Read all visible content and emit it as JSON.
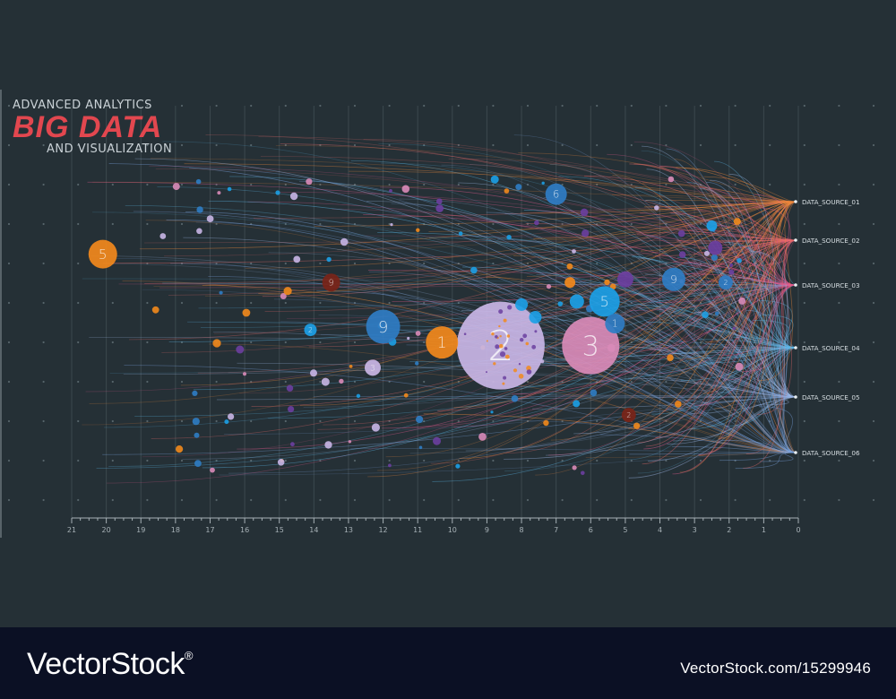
{
  "header": {
    "line1": "ADVANCED ANALYTICS",
    "line2": "BIG DATA",
    "line3": "AND VISUALIZATION"
  },
  "colors": {
    "background": "#253036",
    "title_accent": "#e2474f",
    "footer_bg": "#0b1024",
    "orange": "#f2891c",
    "blue": "#2f7dc4",
    "cyan": "#1ca0e6",
    "lavender": "#c9b6e6",
    "pink": "#d98bb8",
    "purple": "#6b3fa0",
    "dark_red": "#7a2418"
  },
  "footer": {
    "brand": "VectorStock",
    "trademark": "®",
    "image_id": "VectorStock.com/15299946"
  },
  "chart_data": {
    "type": "scatter",
    "x_reversed": true,
    "xlim": [
      21,
      0
    ],
    "x_ticks": [
      "21",
      "20",
      "19",
      "18",
      "17",
      "16",
      "15",
      "14",
      "13",
      "12",
      "11",
      "10",
      "9",
      "8",
      "7",
      "6",
      "5",
      "4",
      "3",
      "2",
      "1",
      "0"
    ],
    "data_sources": [
      "DATA_SOURCE_01",
      "DATA_SOURCE_02",
      "DATA_SOURCE_03",
      "DATA_SOURCE_04",
      "DATA_SOURCE_05",
      "DATA_SOURCE_06"
    ],
    "labeled_bubbles": [
      {
        "x": 20.1,
        "y": 0.3,
        "r": 16,
        "label": "5",
        "color": "orange"
      },
      {
        "x": 8.6,
        "y": 0.59,
        "r": 49,
        "label": "2",
        "color": "lavender"
      },
      {
        "x": 6.0,
        "y": 0.59,
        "r": 32,
        "label": "3",
        "color": "pink"
      },
      {
        "x": 10.3,
        "y": 0.58,
        "r": 18,
        "label": "1",
        "color": "orange"
      },
      {
        "x": 12.0,
        "y": 0.53,
        "r": 19,
        "label": "9",
        "color": "blue"
      },
      {
        "x": 5.6,
        "y": 0.45,
        "r": 17,
        "label": "5",
        "color": "cyan"
      },
      {
        "x": 3.6,
        "y": 0.38,
        "r": 13,
        "label": "9",
        "color": "blue"
      },
      {
        "x": 7.0,
        "y": 0.11,
        "r": 12,
        "label": "6",
        "color": "blue"
      },
      {
        "x": 13.5,
        "y": 0.39,
        "r": 10,
        "label": "9",
        "color": "dark_red"
      },
      {
        "x": 12.3,
        "y": 0.66,
        "r": 9,
        "label": "3",
        "color": "lavender"
      },
      {
        "x": 5.3,
        "y": 0.52,
        "r": 11,
        "label": "1",
        "color": "blue"
      },
      {
        "x": 4.9,
        "y": 0.81,
        "r": 8,
        "label": "2",
        "color": "dark_red"
      },
      {
        "x": 14.1,
        "y": 0.54,
        "r": 7,
        "label": "2",
        "color": "cyan"
      },
      {
        "x": 5.0,
        "y": 0.38,
        "r": 9,
        "label": "",
        "color": "purple"
      },
      {
        "x": 2.1,
        "y": 0.39,
        "r": 8,
        "label": "2",
        "color": "blue"
      },
      {
        "x": 2.4,
        "y": 0.28,
        "r": 8,
        "label": "",
        "color": "purple"
      },
      {
        "x": 8.0,
        "y": 0.46,
        "r": 7,
        "label": "",
        "color": "cyan"
      },
      {
        "x": 6.4,
        "y": 0.45,
        "r": 8,
        "label": "",
        "color": "cyan"
      },
      {
        "x": 7.6,
        "y": 0.5,
        "r": 7,
        "label": "",
        "color": "cyan"
      },
      {
        "x": 6.6,
        "y": 0.39,
        "r": 6,
        "label": "",
        "color": "orange"
      },
      {
        "x": 2.5,
        "y": 0.21,
        "r": 6,
        "label": "",
        "color": "cyan"
      }
    ]
  }
}
